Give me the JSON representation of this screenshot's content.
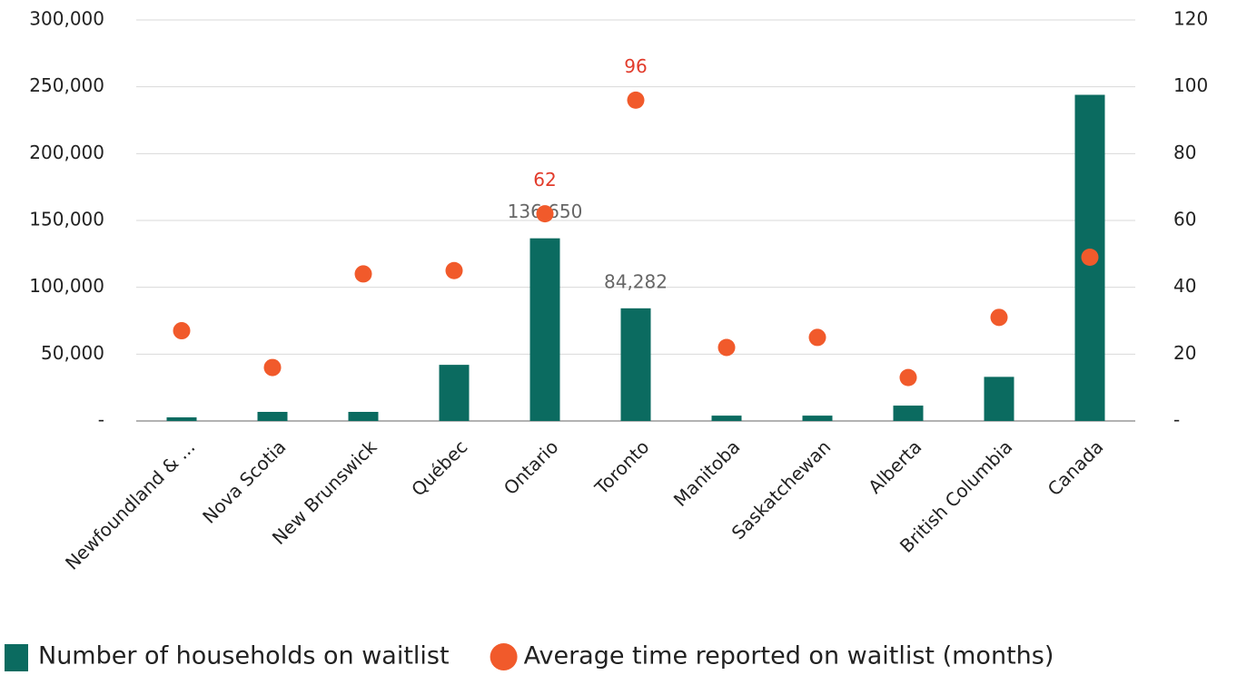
{
  "chart_data": {
    "type": "bar",
    "categories": [
      "Newfoundland & ...",
      "Nova Scotia",
      "New Brunswick",
      "Québec",
      "Ontario",
      "Toronto",
      "Manitoba",
      "Saskatchewan",
      "Alberta",
      "British Columbia",
      "Canada"
    ],
    "series": [
      {
        "name": "Number of households on waitlist",
        "type": "bar",
        "color": "#0b6b60",
        "values": [
          2700,
          6800,
          6800,
          42000,
          136650,
          84282,
          4000,
          4000,
          11500,
          33000,
          244000
        ],
        "value_labels": [
          null,
          null,
          null,
          null,
          "136,650",
          "84,282",
          null,
          null,
          null,
          null,
          null
        ]
      },
      {
        "name": "Average time reported on waitlist (months)",
        "type": "scatter",
        "axis": "y2",
        "color": "#f15a2b",
        "values": [
          27,
          16,
          44,
          45,
          62,
          96,
          22,
          25,
          13,
          31,
          49
        ],
        "value_labels": [
          null,
          null,
          null,
          null,
          "62",
          "96",
          null,
          null,
          null,
          null,
          null
        ]
      }
    ],
    "ylim": [
      0,
      300000
    ],
    "yticks": [
      {
        "value": 0,
        "label": "-"
      },
      {
        "value": 50000,
        "label": "50,000"
      },
      {
        "value": 100000,
        "label": "100,000"
      },
      {
        "value": 150000,
        "label": "150,000"
      },
      {
        "value": 200000,
        "label": "200,000"
      },
      {
        "value": 250000,
        "label": "250,000"
      },
      {
        "value": 300000,
        "label": "300,000"
      }
    ],
    "y2lim": [
      0,
      120
    ],
    "y2ticks": [
      {
        "value": 0,
        "label": "-"
      },
      20,
      40,
      60,
      80,
      100,
      120
    ],
    "grid": true,
    "legend": "bottom"
  }
}
